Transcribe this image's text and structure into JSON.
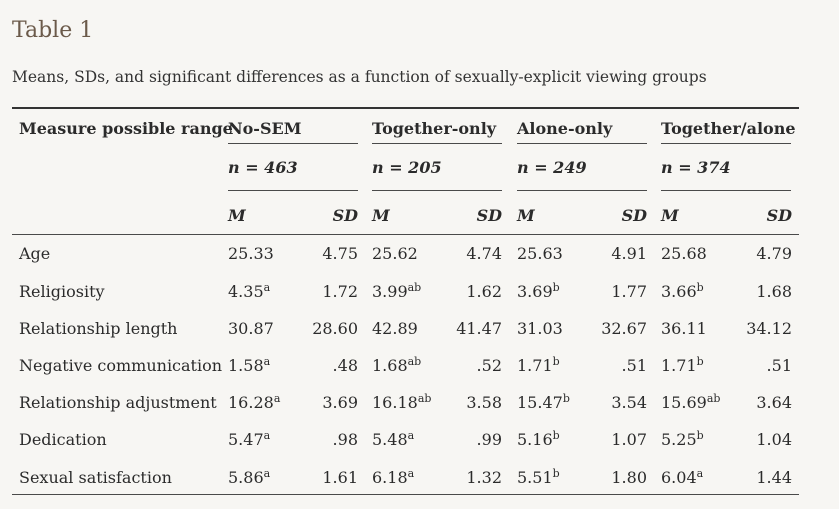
{
  "title": "Table 1",
  "caption": "Means, SDs, and significant differences as a function of sexually-explicit viewing groups",
  "header": {
    "measure": "Measure possible range",
    "groups": [
      {
        "name": "No-SEM",
        "n": "n = 463"
      },
      {
        "name": "Together-only",
        "n": "n = 205"
      },
      {
        "name": "Alone-only",
        "n": "n = 249"
      },
      {
        "name": "Together/alone",
        "n": "n = 374"
      }
    ],
    "m_label": "M",
    "sd_label": "SD"
  },
  "rows": [
    {
      "label": "Age",
      "cells": [
        {
          "m": "25.33",
          "ms": "",
          "sd": "4.75"
        },
        {
          "m": "25.62",
          "ms": "",
          "sd": "4.74"
        },
        {
          "m": "25.63",
          "ms": "",
          "sd": "4.91"
        },
        {
          "m": "25.68",
          "ms": "",
          "sd": "4.79"
        }
      ]
    },
    {
      "label": "Religiosity",
      "cells": [
        {
          "m": "4.35",
          "ms": "a",
          "sd": "1.72"
        },
        {
          "m": "3.99",
          "ms": "ab",
          "sd": "1.62"
        },
        {
          "m": "3.69",
          "ms": "b",
          "sd": "1.77"
        },
        {
          "m": "3.66",
          "ms": "b",
          "sd": "1.68"
        }
      ]
    },
    {
      "label": "Relationship length",
      "cells": [
        {
          "m": "30.87",
          "ms": "",
          "sd": "28.60"
        },
        {
          "m": "42.89",
          "ms": "",
          "sd": "41.47"
        },
        {
          "m": "31.03",
          "ms": "",
          "sd": "32.67"
        },
        {
          "m": "36.11",
          "ms": "",
          "sd": "34.12"
        }
      ]
    },
    {
      "label": "Negative communication",
      "cells": [
        {
          "m": "1.58",
          "ms": "a",
          "sd": ".48"
        },
        {
          "m": "1.68",
          "ms": "ab",
          "sd": ".52"
        },
        {
          "m": "1.71",
          "ms": "b",
          "sd": ".51"
        },
        {
          "m": "1.71",
          "ms": "b",
          "sd": ".51"
        }
      ]
    },
    {
      "label": "Relationship adjustment",
      "cells": [
        {
          "m": "16.28",
          "ms": "a",
          "sd": "3.69"
        },
        {
          "m": "16.18",
          "ms": "ab",
          "sd": "3.58"
        },
        {
          "m": "15.47",
          "ms": "b",
          "sd": "3.54"
        },
        {
          "m": "15.69",
          "ms": "ab",
          "sd": "3.64"
        }
      ]
    },
    {
      "label": "Dedication",
      "cells": [
        {
          "m": "5.47",
          "ms": "a",
          "sd": ".98"
        },
        {
          "m": "5.48",
          "ms": "a",
          "sd": ".99"
        },
        {
          "m": "5.16",
          "ms": "b",
          "sd": "1.07"
        },
        {
          "m": "5.25",
          "ms": "b",
          "sd": "1.04"
        }
      ]
    },
    {
      "label": "Sexual satisfaction",
      "cells": [
        {
          "m": "5.86",
          "ms": "a",
          "sd": "1.61"
        },
        {
          "m": "6.18",
          "ms": "a",
          "sd": "1.32"
        },
        {
          "m": "5.51",
          "ms": "b",
          "sd": "1.80"
        },
        {
          "m": "6.04",
          "ms": "a",
          "sd": "1.44"
        }
      ]
    }
  ]
}
